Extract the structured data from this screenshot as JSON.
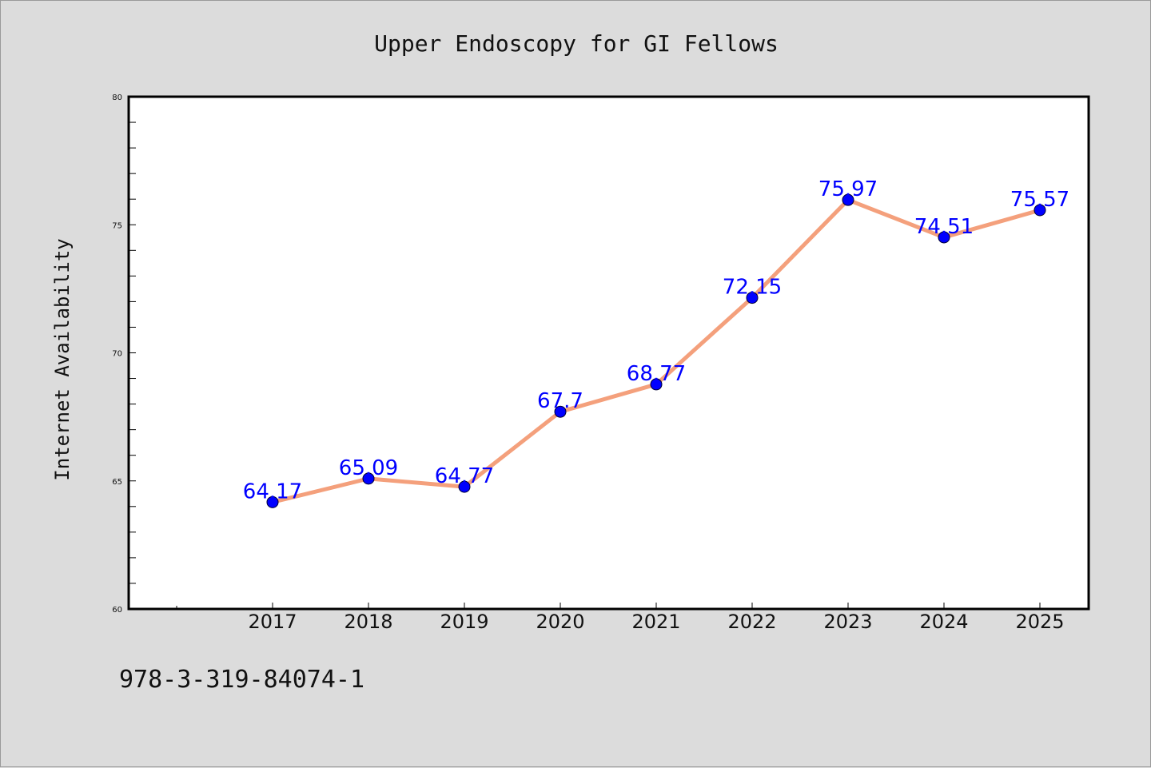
{
  "chart_data": {
    "type": "line",
    "title": "Upper Endoscopy for GI Fellows",
    "xlabel": "",
    "ylabel": "Internet Availability",
    "categories": [
      "2017",
      "2018",
      "2019",
      "2020",
      "2021",
      "2022",
      "2023",
      "2024",
      "2025"
    ],
    "series": [
      {
        "values": [
          64.17,
          65.09,
          64.77,
          67.7,
          68.77,
          72.15,
          75.97,
          74.51,
          75.57
        ],
        "labels": [
          "64.17",
          "65.09",
          "64.77",
          "67.7",
          "68.77",
          "72.15",
          "75.97",
          "74.51",
          "75.57"
        ],
        "line_color": "#f4a07c",
        "marker_color": "#0000ff"
      }
    ],
    "ylim": [
      60,
      80
    ],
    "yticks": [
      "60",
      "65",
      "70",
      "75",
      "80"
    ],
    "grid": false,
    "legend": "none"
  },
  "footnote": "978-3-319-84074-1",
  "colors": {
    "background": "#dcdcdc",
    "plot_background": "#ffffff",
    "label_text": "#0000ff"
  }
}
